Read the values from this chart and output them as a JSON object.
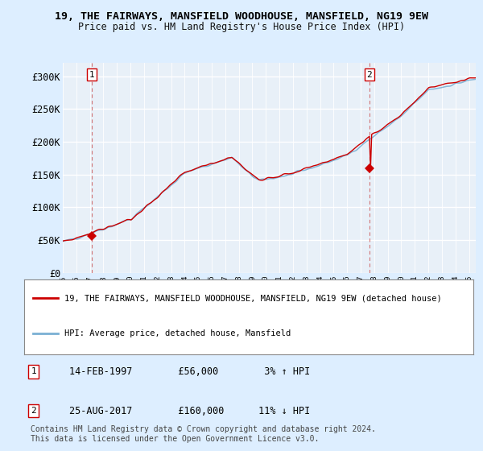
{
  "title1": "19, THE FAIRWAYS, MANSFIELD WOODHOUSE, MANSFIELD, NG19 9EW",
  "title2": "Price paid vs. HM Land Registry's House Price Index (HPI)",
  "ylabel_ticks": [
    "£0",
    "£50K",
    "£100K",
    "£150K",
    "£200K",
    "£250K",
    "£300K"
  ],
  "ylabel_values": [
    0,
    50000,
    100000,
    150000,
    200000,
    250000,
    300000
  ],
  "ylim": [
    0,
    320000
  ],
  "xlim_start": 1995.0,
  "xlim_end": 2025.5,
  "marker1_x": 1997.12,
  "marker1_y": 56000,
  "marker1_label": "1",
  "marker2_x": 2017.65,
  "marker2_y": 160000,
  "marker2_label": "2",
  "legend_line1": "19, THE FAIRWAYS, MANSFIELD WOODHOUSE, MANSFIELD, NG19 9EW (detached house)",
  "legend_line2": "HPI: Average price, detached house, Mansfield",
  "ann1_date": "14-FEB-1997",
  "ann1_price": "£56,000",
  "ann1_hpi": "3% ↑ HPI",
  "ann2_date": "25-AUG-2017",
  "ann2_price": "£160,000",
  "ann2_hpi": "11% ↓ HPI",
  "footer": "Contains HM Land Registry data © Crown copyright and database right 2024.\nThis data is licensed under the Open Government Licence v3.0.",
  "line_color_property": "#cc0000",
  "line_color_hpi": "#7ab0d4",
  "bg_color": "#ddeeff",
  "plot_bg": "#e8f0f8",
  "grid_color": "#ffffff",
  "dashed_line_color": "#cc5555"
}
